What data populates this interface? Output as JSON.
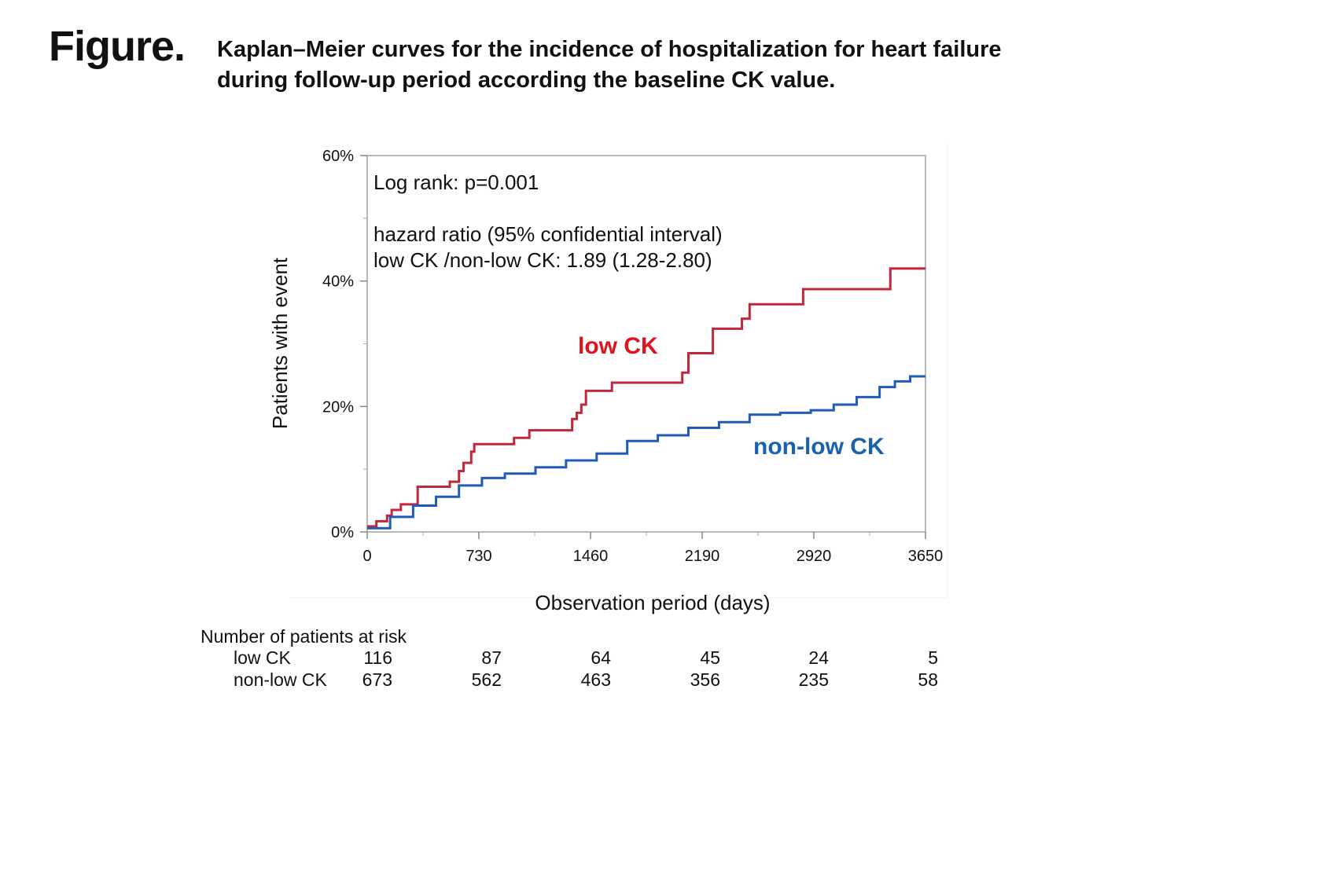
{
  "figure": {
    "label": "Figure.",
    "caption_line1": "Kaplan–Meier curves for the incidence of hospitalization for heart failure",
    "caption_line2": "during follow-up period according the baseline CK value."
  },
  "annotations": {
    "logrank": "Log rank: p=0.001",
    "hr_title": "hazard ratio (95% confidential interval)",
    "hr_value": "low CK /non-low CK: 1.89 (1.28-2.80)"
  },
  "chart_data": {
    "type": "line",
    "subtype": "kaplan-meier step",
    "xlabel": "Observation period (days)",
    "ylabel": "Patients with event",
    "xlim": [
      0,
      3650
    ],
    "ylim": [
      0,
      60
    ],
    "x_ticks": [
      0,
      730,
      1460,
      2190,
      2920,
      3650
    ],
    "x_tick_labels": [
      "0",
      "730",
      "1460",
      "2190",
      "2920",
      "3650"
    ],
    "y_ticks": [
      0,
      20,
      40,
      60
    ],
    "y_tick_labels": [
      "0%",
      "20%",
      "40%",
      "60%"
    ],
    "series": [
      {
        "name": "low CK",
        "color": "#c0283c",
        "label_color": "#e0141e",
        "x": [
          0,
          60,
          130,
          160,
          220,
          330,
          540,
          600,
          630,
          680,
          700,
          960,
          1060,
          1340,
          1370,
          1400,
          1430,
          1600,
          2060,
          2100,
          2260,
          2450,
          2500,
          2850,
          3420,
          3650
        ],
        "y": [
          0.9,
          1.7,
          2.6,
          3.5,
          4.4,
          7.2,
          8.0,
          9.7,
          11.0,
          12.8,
          14.0,
          15.0,
          16.2,
          18.0,
          19.0,
          20.3,
          22.5,
          23.8,
          25.4,
          28.5,
          32.4,
          34.0,
          36.3,
          38.7,
          42.0,
          42.0
        ]
      },
      {
        "name": "non-low CK",
        "color": "#1f5bb8",
        "label_color": "#1a62b0",
        "x": [
          0,
          150,
          300,
          450,
          600,
          750,
          900,
          1100,
          1300,
          1500,
          1700,
          1900,
          2100,
          2300,
          2500,
          2700,
          2900,
          3050,
          3200,
          3350,
          3450,
          3550,
          3650
        ],
        "y": [
          0.6,
          2.4,
          4.2,
          5.6,
          7.4,
          8.6,
          9.3,
          10.3,
          11.4,
          12.5,
          14.5,
          15.4,
          16.6,
          17.5,
          18.7,
          19.0,
          19.4,
          20.3,
          21.5,
          23.1,
          24.0,
          24.8,
          24.8
        ]
      }
    ]
  },
  "risk_table": {
    "title": "Number of patients at risk",
    "rows": [
      {
        "label": "low CK",
        "values": [
          "116",
          "87",
          "64",
          "45",
          "24",
          "5"
        ]
      },
      {
        "label": "non-low CK",
        "values": [
          "673",
          "562",
          "463",
          "356",
          "235",
          "58"
        ]
      }
    ]
  }
}
